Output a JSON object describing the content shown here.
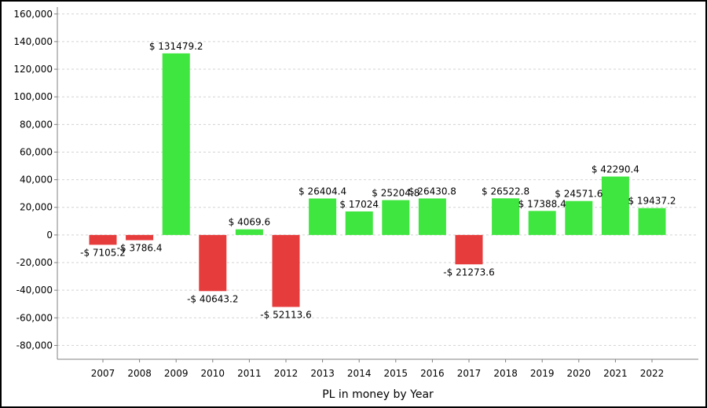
{
  "chart_data": {
    "type": "bar",
    "title": "",
    "xlabel": "PL in money by Year",
    "ylabel": "",
    "categories": [
      "2007",
      "2008",
      "2009",
      "2010",
      "2011",
      "2012",
      "2013",
      "2014",
      "2015",
      "2016",
      "2017",
      "2018",
      "2019",
      "2020",
      "2021",
      "2022"
    ],
    "values": [
      -7105.2,
      -3786.4,
      131479.2,
      -40643.2,
      4069.6,
      -52113.6,
      26404.4,
      17024,
      25204.8,
      26430.8,
      -21273.6,
      26522.8,
      17388.4,
      24571.6,
      42290.4,
      19437.2
    ],
    "data_labels": [
      "-$ 7105.2",
      "-$ 3786.4",
      "$ 131479.2",
      "-$ 40643.2",
      "$ 4069.6",
      "-$ 52113.6",
      "$ 26404.4",
      "$ 17024",
      "$ 25204.8",
      "$ 26430.8",
      "-$ 21273.6",
      "$ 26522.8",
      "$ 17388.4",
      "$ 24571.6",
      "$ 42290.4",
      "$ 19437.2"
    ],
    "ylim": [
      -90000,
      165000
    ],
    "yticks": [
      -80000,
      -60000,
      -40000,
      -20000,
      0,
      20000,
      40000,
      60000,
      80000,
      100000,
      120000,
      140000,
      160000
    ],
    "ytick_labels": [
      "-80,000",
      "-60,000",
      "-40,000",
      "-20,000",
      "0",
      "20,000",
      "40,000",
      "60,000",
      "80,000",
      "100,000",
      "120,000",
      "140,000",
      "160,000"
    ],
    "grid": true,
    "legend": "none",
    "colors": {
      "positive": "#3fe63f",
      "negative": "#e63c3c",
      "grid": "#d3d3d3",
      "axis": "#808080"
    }
  }
}
